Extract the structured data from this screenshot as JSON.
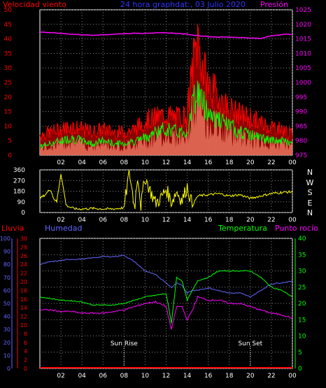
{
  "header": {
    "left_label": "Velocidad viento",
    "center_label": "24 hora graphdat:, 03 Julio 2020",
    "right_label": "Presión"
  },
  "colors": {
    "wind_gust": "#ff0000",
    "wind_avg": "#00ff00",
    "wind_speed_fill": "#ccffcc",
    "pressure": "#ff00ff",
    "direction": "#ffff00",
    "humidity": "#6666ff",
    "temperature": "#00ff00",
    "dewpoint": "#ff00ff",
    "rain": "#ff0000",
    "grid": "#888888",
    "axis": "#ffffff"
  },
  "chart_data": [
    {
      "type": "area",
      "name": "wind_pressure",
      "title": "24 hora graphdat:, 03 Julio 2020",
      "ylabel_left": "Velocidad viento",
      "ylabel_right": "Presión",
      "x_ticks": [
        "02",
        "04",
        "06",
        "08",
        "10",
        "12",
        "14",
        "16",
        "18",
        "20",
        "22",
        "00"
      ],
      "y_left_ticks": [
        0,
        5,
        10,
        15,
        20,
        25,
        30,
        35,
        40,
        45,
        50
      ],
      "y_right_ticks": [
        975,
        980,
        985,
        990,
        995,
        1000,
        1005,
        1010,
        1015,
        1020,
        1025
      ],
      "ylim_left": [
        0,
        50
      ],
      "ylim_right": [
        975,
        1025
      ],
      "x_hours": [
        0,
        1,
        2,
        3,
        4,
        5,
        6,
        7,
        8,
        9,
        10,
        11,
        12,
        13,
        14,
        14.5,
        15,
        15.5,
        16,
        17,
        18,
        19,
        20,
        21,
        22,
        23,
        24
      ],
      "series": [
        {
          "name": "gust",
          "values": [
            7,
            8,
            9,
            10,
            9,
            8,
            9,
            8,
            8,
            9,
            12,
            13,
            14,
            13,
            14,
            30,
            40,
            30,
            24,
            20,
            16,
            14,
            13,
            11,
            10,
            9,
            7
          ]
        },
        {
          "name": "average",
          "values": [
            3,
            4,
            5,
            6,
            5,
            4,
            5,
            4,
            4,
            5,
            6,
            8,
            9,
            8,
            8,
            18,
            22,
            18,
            15,
            12,
            10,
            8,
            7,
            6,
            5,
            5,
            4
          ]
        },
        {
          "name": "pressure",
          "values": [
            1017.3,
            1017.2,
            1016.9,
            1016.6,
            1016.4,
            1016.3,
            1016.4,
            1016.6,
            1016.8,
            1016.9,
            1017.0,
            1017.0,
            1017.1,
            1016.9,
            1016.6,
            1016.3,
            1016.2,
            1016.0,
            1015.8,
            1015.6,
            1015.6,
            1015.5,
            1015.3,
            1015.1,
            1016.1,
            1016.5,
            1016.6
          ]
        }
      ]
    },
    {
      "type": "line",
      "name": "wind_direction",
      "y_ticks": [
        0,
        90,
        180,
        270,
        360
      ],
      "ylim": [
        0,
        360
      ],
      "side_labels": [
        "N",
        "W",
        "S",
        "E",
        "N"
      ],
      "x_hours": [
        0,
        0.5,
        1,
        1.3,
        1.6,
        2,
        2.5,
        3,
        3.5,
        4,
        5,
        6,
        7,
        8,
        8.5,
        9,
        9.3,
        9.6,
        10,
        10.5,
        11,
        11.5,
        12,
        12.5,
        13,
        13.5,
        14,
        14.5,
        15,
        16,
        17,
        18,
        19,
        20,
        21,
        22,
        23,
        24
      ],
      "series": [
        {
          "name": "direction",
          "values": [
            120,
            150,
            200,
            120,
            90,
            330,
            60,
            40,
            30,
            30,
            35,
            30,
            30,
            40,
            350,
            40,
            330,
            60,
            300,
            180,
            80,
            120,
            200,
            90,
            180,
            100,
            220,
            60,
            140,
            150,
            160,
            140,
            150,
            120,
            140,
            160,
            170,
            175
          ]
        }
      ]
    },
    {
      "type": "line",
      "name": "rain_humidity_temperature",
      "labels": {
        "rain": "Lluvia",
        "humidity": "Humedad",
        "temperature": "Temperatura",
        "dewpoint": "Punto rocío"
      },
      "annotations": [
        {
          "text": "Sun Rise",
          "hour": 8
        },
        {
          "text": "Sun Set",
          "hour": 20
        }
      ],
      "x_ticks": [
        "02",
        "04",
        "06",
        "08",
        "10",
        "12",
        "14",
        "16",
        "18",
        "20",
        "22",
        "00"
      ],
      "humidity_ticks": [
        0,
        10,
        20,
        30,
        40,
        50,
        60,
        70,
        80,
        90,
        100
      ],
      "rain_ticks": [
        0,
        2,
        4,
        6,
        8,
        10,
        12,
        14,
        16,
        18,
        20,
        22,
        24,
        26,
        28,
        30
      ],
      "temp_ticks": [
        0,
        5,
        10,
        15,
        20,
        25,
        30,
        35,
        40
      ],
      "ylim_humidity": [
        0,
        100
      ],
      "ylim_rain": [
        0,
        30
      ],
      "ylim_temp": [
        0,
        40
      ],
      "x_hours": [
        0,
        1,
        2,
        3,
        4,
        5,
        6,
        7,
        8,
        9,
        10,
        11,
        12,
        12.5,
        13,
        13.5,
        14,
        14.5,
        15,
        16,
        17,
        18,
        19,
        20,
        21,
        22,
        23,
        24
      ],
      "series": [
        {
          "name": "Humedad",
          "axis": "humidity",
          "values": [
            80,
            82,
            83,
            84,
            84,
            85,
            86,
            86,
            87,
            82,
            75,
            72,
            66,
            62,
            66,
            64,
            58,
            60,
            60,
            62,
            60,
            58,
            58,
            55,
            60,
            65,
            66,
            67
          ]
        },
        {
          "name": "Temperatura",
          "axis": "temp",
          "values": [
            22,
            21.5,
            21,
            20.8,
            20.5,
            19.5,
            19.5,
            19.5,
            20,
            21,
            22,
            22.5,
            23,
            14,
            28,
            27,
            21,
            24,
            27,
            28,
            30,
            30,
            30,
            30,
            28,
            25,
            24,
            22
          ]
        },
        {
          "name": "Punto rocío",
          "axis": "temp",
          "values": [
            18,
            18,
            17.5,
            17.5,
            17,
            17,
            17,
            17.5,
            18,
            19,
            20,
            20.5,
            19,
            12,
            19,
            19,
            15,
            18,
            22,
            21,
            21,
            20,
            20,
            19,
            18,
            17,
            16.5,
            15.5
          ]
        },
        {
          "name": "Lluvia",
          "axis": "rain",
          "values": [
            0,
            0,
            0,
            0,
            0,
            0,
            0,
            0,
            0,
            0,
            0,
            0,
            0,
            0,
            0,
            0,
            0,
            0,
            0,
            0,
            0,
            0,
            0,
            0,
            0,
            0,
            0,
            0
          ]
        }
      ]
    }
  ]
}
